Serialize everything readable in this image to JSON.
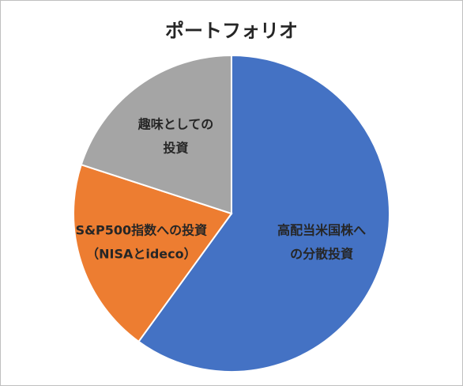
{
  "chart_data": {
    "type": "pie",
    "title": "ポートフォリオ",
    "categories": [
      [
        "高配当米国株へ",
        "の分散投資"
      ],
      [
        "S&P500指数への投資",
        "（NISAとideco）"
      ],
      [
        "趣味としての",
        "投資"
      ]
    ],
    "values": [
      60,
      20,
      20
    ],
    "colors": [
      "#4472c4",
      "#ed7d31",
      "#a5a5a5"
    ]
  }
}
